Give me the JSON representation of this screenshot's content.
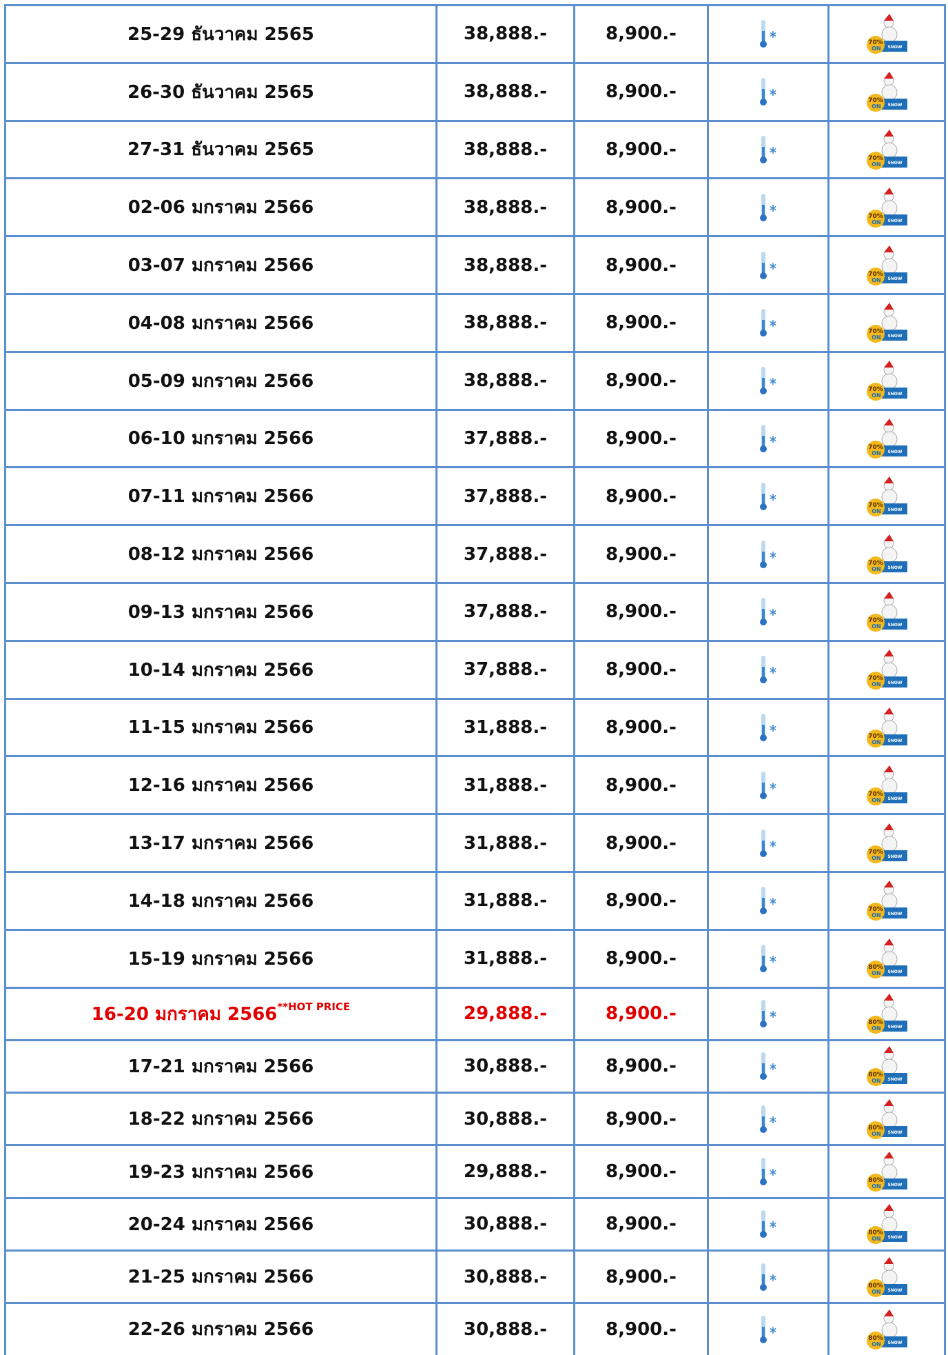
{
  "badge_on": "ON",
  "badge_snow": "SNOW",
  "rows": [
    {
      "date": "25-29 ธันวาคม 2565",
      "price": "38,888.-",
      "single": "8,900.-",
      "badge": "70%"
    },
    {
      "date": "26-30 ธันวาคม 2565",
      "price": "38,888.-",
      "single": "8,900.-",
      "badge": "70%"
    },
    {
      "date": "27-31 ธันวาคม 2565",
      "price": "38,888.-",
      "single": "8,900.-",
      "badge": "70%"
    },
    {
      "date": "02-06 มกราคม 2566",
      "price": "38,888.-",
      "single": "8,900.-",
      "badge": "70%"
    },
    {
      "date": "03-07 มกราคม 2566",
      "price": "38,888.-",
      "single": "8,900.-",
      "badge": "70%"
    },
    {
      "date": "04-08 มกราคม 2566",
      "price": "38,888.-",
      "single": "8,900.-",
      "badge": "70%"
    },
    {
      "date": "05-09 มกราคม 2566",
      "price": "38,888.-",
      "single": "8,900.-",
      "badge": "70%"
    },
    {
      "date": "06-10 มกราคม 2566",
      "price": "37,888.-",
      "single": "8,900.-",
      "badge": "70%"
    },
    {
      "date": "07-11 มกราคม 2566",
      "price": "37,888.-",
      "single": "8,900.-",
      "badge": "70%"
    },
    {
      "date": "08-12 มกราคม 2566",
      "price": "37,888.-",
      "single": "8,900.-",
      "badge": "70%"
    },
    {
      "date": "09-13 มกราคม 2566",
      "price": "37,888.-",
      "single": "8,900.-",
      "badge": "70%"
    },
    {
      "date": "10-14 มกราคม 2566",
      "price": "37,888.-",
      "single": "8,900.-",
      "badge": "70%"
    },
    {
      "date": "11-15 มกราคม 2566",
      "price": "31,888.-",
      "single": "8,900.-",
      "badge": "70%"
    },
    {
      "date": "12-16 มกราคม 2566",
      "price": "31,888.-",
      "single": "8,900.-",
      "badge": "70%"
    },
    {
      "date": "13-17 มกราคม 2566",
      "price": "31,888.-",
      "single": "8,900.-",
      "badge": "70%"
    },
    {
      "date": "14-18 มกราคม 2566",
      "price": "31,888.-",
      "single": "8,900.-",
      "badge": "70%"
    },
    {
      "date": "15-19 มกราคม 2566",
      "price": "31,888.-",
      "single": "8,900.-",
      "badge": "80%"
    },
    {
      "date": "16-20 มกราคม 2566",
      "note": "**HOT PRICE",
      "price": "29,888.-",
      "single": "8,900.-",
      "badge": "80%"
    },
    {
      "date": "17-21 มกราคม 2566",
      "price": "30,888.-",
      "single": "8,900.-",
      "badge": "80%"
    },
    {
      "date": "18-22 มกราคม 2566",
      "price": "30,888.-",
      "single": "8,900.-",
      "badge": "80%"
    },
    {
      "date": "19-23 มกราคม 2566",
      "price": "29,888.-",
      "single": "8,900.-",
      "badge": "80%"
    },
    {
      "date": "20-24 มกราคม 2566",
      "price": "30,888.-",
      "single": "8,900.-",
      "badge": "80%"
    },
    {
      "date": "21-25 มกราคม 2566",
      "price": "30,888.-",
      "single": "8,900.-",
      "badge": "80%"
    },
    {
      "date": "22-26 มกราคม 2566",
      "price": "30,888.-",
      "single": "8,900.-",
      "badge": "80%"
    }
  ]
}
